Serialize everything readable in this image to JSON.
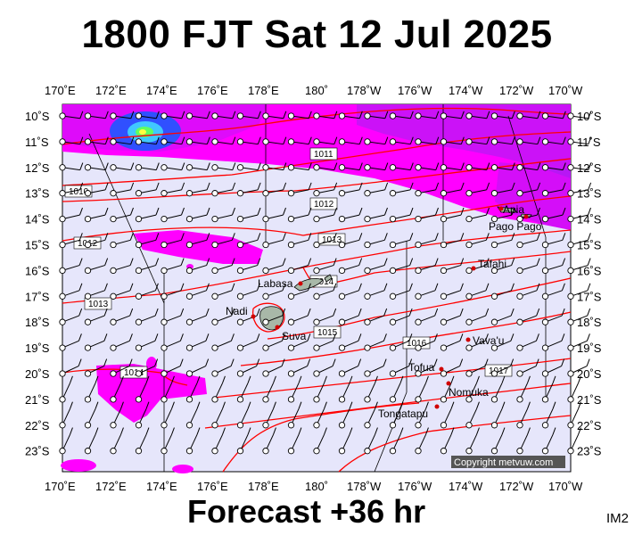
{
  "title": "1800 FJT Sat 12 Jul 2025",
  "footer": "Forecast +36 hr",
  "badge": "IM2",
  "copyright": "Copyright metvuw.com",
  "lon_labels": [
    "170˚E",
    "172˚E",
    "174˚E",
    "176˚E",
    "178˚E",
    "180˚",
    "178˚W",
    "176˚W",
    "174˚W",
    "172˚W",
    "170˚W"
  ],
  "lat_labels": [
    "10˚S",
    "11˚S",
    "12˚S",
    "13˚S",
    "14˚S",
    "15˚S",
    "16˚S",
    "17˚S",
    "18˚S",
    "19˚S",
    "20˚S",
    "21˚S",
    "22˚S",
    "23˚S"
  ],
  "places": [
    {
      "name": "Apia"
    },
    {
      "name": "Pago Pago"
    },
    {
      "name": "Tafahi"
    },
    {
      "name": "Labasa"
    },
    {
      "name": "Nadi"
    },
    {
      "name": "Suva"
    },
    {
      "name": "Vava'u"
    },
    {
      "name": "Tofua"
    },
    {
      "name": "Nomuka"
    },
    {
      "name": "Tongatapu"
    }
  ],
  "isobar_labels": [
    "1011",
    "1012",
    "1013",
    "1010",
    "1012",
    "1013",
    "1014",
    "1015",
    "1016",
    "1017",
    "1014"
  ],
  "colors": {
    "background_field": "#e6e6fb",
    "rain_magenta": "#ff00ff",
    "rain_purple": "#a020f0",
    "rain_blue": "#2040ff",
    "isobar": "#ff0000",
    "land": "#a8b8a8"
  }
}
